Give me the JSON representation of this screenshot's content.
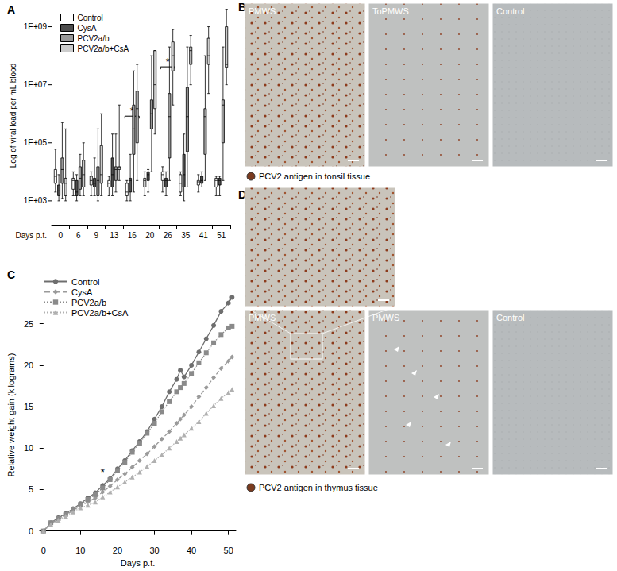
{
  "chart_data": [
    {
      "type": "boxplot",
      "title": "A",
      "x_label": "Days p.t.",
      "y_label": "Log of viral load per mL blood",
      "categories": [
        "0",
        "6",
        "9",
        "13",
        "16",
        "20",
        "26",
        "35",
        "41",
        "51"
      ],
      "series": [
        {
          "name": "Control",
          "color": "#ffffff",
          "values": [
            [
              2000,
              4000,
              7000,
              12000,
              60000
            ],
            [
              1500,
              2500,
              5000,
              6000,
              10000
            ],
            [
              1500,
              3500,
              5000,
              7000,
              10000
            ],
            [
              1500,
              3000,
              4000,
              5000,
              7000
            ],
            [
              1000,
              1500,
              2000,
              4000,
              5000
            ],
            [
              1500,
              3000,
              5000,
              6000,
              10000
            ],
            [
              2000,
              5000,
              8000,
              10000,
              15000
            ],
            [
              1500,
              2000,
              4000,
              8000,
              10000
            ],
            [
              2000,
              3500,
              4500,
              5000,
              8000
            ],
            [
              1500,
              3000,
              5000,
              6000,
              7000
            ]
          ]
        },
        {
          "name": "CysA",
          "color": "#4d4d4d",
          "values": [
            [
              1000,
              1500,
              2200,
              3500,
              8000
            ],
            [
              1000,
              1500,
              2000,
              5000,
              8000
            ],
            [
              1500,
              3000,
              4000,
              6000,
              30000
            ],
            [
              1500,
              3000,
              8000,
              30000,
              200000
            ],
            [
              1000,
              2000,
              5000,
              6000,
              40000
            ],
            [
              2000,
              5000,
              8000,
              10000,
              12000
            ],
            [
              1500,
              3000,
              5000,
              6000,
              10000
            ],
            [
              1000,
              3000,
              8000,
              40000,
              200000
            ],
            [
              3000,
              4000,
              5000,
              7000,
              10000
            ],
            [
              1500,
              3500,
              5000,
              6000,
              7000
            ]
          ]
        },
        {
          "name": "PCV2a/b",
          "color": "#999999",
          "values": [
            [
              1200,
              4000,
              12000,
              30000,
              500000
            ],
            [
              1500,
              2500,
              6000,
              15000,
              40000
            ],
            [
              1000,
              1500,
              5000,
              15000,
              300000
            ],
            [
              2000,
              5000,
              12000,
              15000,
              200000
            ],
            [
              2000,
              40000,
              300000,
              2000000,
              30000000
            ],
            [
              10000,
              300000,
              1000000,
              3000000,
              100000000
            ],
            [
              5000,
              30000,
              800000,
              5000000,
              200000000
            ],
            [
              3000,
              50000,
              800000,
              8000000,
              200000000
            ],
            [
              5000,
              40000,
              800000,
              1500000,
              100000000
            ],
            [
              5000,
              100000,
              2000000,
              3000000,
              200000000
            ]
          ]
        },
        {
          "name": "PCV2a/b+CsA",
          "color": "#cccccc",
          "values": [
            [
              1000,
              1500,
              4000,
              6000,
              300000
            ],
            [
              1500,
              3000,
              8000,
              25000,
              100000
            ],
            [
              1500,
              4000,
              8000,
              80000,
              1000000
            ],
            [
              5000,
              12000,
              14000,
              15000,
              2000000
            ],
            [
              5000,
              100000,
              1500000,
              6000000,
              50000000
            ],
            [
              200000,
              1500000,
              10000000,
              150000000,
              150000000
            ],
            [
              2000000,
              30000000,
              100000000,
              300000000,
              800000000
            ],
            [
              10000000,
              50000000,
              150000000,
              200000000,
              500000000
            ],
            [
              5000000,
              50000000,
              100000000,
              400000000,
              1000000000
            ],
            [
              10000000,
              40000000,
              50000000,
              1000000000,
              4000000000
            ]
          ]
        }
      ],
      "log": "y",
      "ylim": [
        150,
        5000000000
      ],
      "yticks": [
        {
          "value": 1000,
          "label": "1E+03"
        },
        {
          "value": 100000,
          "label": "1E+05"
        },
        {
          "value": 10000000,
          "label": "1E+07"
        },
        {
          "value": 1000000000,
          "label": "1E+09"
        }
      ],
      "legend": "top-left",
      "grid": false,
      "annotations": [
        {
          "text": "*",
          "x": "16",
          "y": 1000000
        },
        {
          "text": "*",
          "x": "26",
          "y": 50000000
        }
      ]
    },
    {
      "type": "line",
      "title": "C",
      "x_label": "Days p.t.",
      "y_label": "Relative weight gain (kilograms)",
      "x": [
        0,
        2,
        4,
        6,
        8,
        10,
        12,
        14,
        16,
        18,
        20,
        22,
        24,
        26,
        28,
        30,
        32,
        34,
        36,
        37,
        38,
        40,
        42,
        44,
        46,
        48,
        50,
        51
      ],
      "series": [
        {
          "name": "Control",
          "color": "#6e6e6e",
          "marker": "circle",
          "line_style": "solid",
          "values": [
            0,
            1.0,
            1.6,
            2.1,
            2.7,
            3.3,
            4.0,
            4.6,
            5.5,
            6.3,
            7.5,
            8.5,
            9.7,
            10.8,
            12.0,
            13.5,
            15.0,
            16.8,
            18.3,
            19.4,
            18.6,
            20.0,
            21.6,
            23.2,
            24.8,
            26.5,
            27.5,
            28.2
          ]
        },
        {
          "name": "CysA",
          "color": "#9a9a9a",
          "marker": "diamond",
          "line_style": "dashed",
          "values": [
            0,
            0.9,
            1.4,
            1.9,
            2.5,
            3.0,
            3.5,
            4.0,
            4.7,
            5.4,
            6.2,
            6.9,
            7.7,
            8.5,
            9.3,
            10.2,
            11.1,
            12.0,
            13.0,
            13.5,
            14.0,
            15.0,
            16.2,
            17.3,
            18.5,
            19.6,
            20.5,
            21.0
          ]
        },
        {
          "name": "PCV2a/b",
          "color": "#8a8a8a",
          "marker": "square",
          "line_style": "dotted",
          "values": [
            0,
            1.0,
            1.5,
            2.0,
            2.6,
            3.2,
            3.8,
            4.4,
            5.2,
            6.2,
            7.3,
            8.3,
            9.5,
            10.6,
            11.8,
            13.0,
            14.4,
            15.6,
            16.8,
            17.3,
            17.8,
            19.0,
            20.3,
            21.5,
            22.7,
            23.7,
            24.5,
            24.7
          ]
        },
        {
          "name": "PCV2a/b+CsA",
          "color": "#b0b0b0",
          "marker": "triangle",
          "line_style": "dotted",
          "values": [
            0,
            0.8,
            1.3,
            1.8,
            2.3,
            2.8,
            3.1,
            3.5,
            4.1,
            4.7,
            5.3,
            5.9,
            6.5,
            7.1,
            7.8,
            8.5,
            9.2,
            10.0,
            10.8,
            11.2,
            11.6,
            12.4,
            13.2,
            14.2,
            15.1,
            16.0,
            16.7,
            17.1
          ]
        }
      ],
      "xlim": [
        -1,
        52
      ],
      "xticks": [
        0,
        10,
        20,
        30,
        40,
        50
      ],
      "ylim": [
        -1,
        29
      ],
      "yticks": [
        0,
        5,
        10,
        15,
        20,
        25
      ],
      "legend": "top-left",
      "grid": false,
      "annotations": [
        {
          "text": "*",
          "x": 16,
          "y": 6.5
        }
      ]
    }
  ],
  "images": [
    {
      "letter": "B",
      "panels": [
        "PMWS",
        "ToPMWS",
        "Control"
      ],
      "caption": "PCV2 antigen in tonsil tissue"
    },
    {
      "letter": "D",
      "panels": [
        "PMWS",
        "PMWS",
        "Control"
      ],
      "caption": "PCV2 antigen in thymus tissue"
    }
  ]
}
